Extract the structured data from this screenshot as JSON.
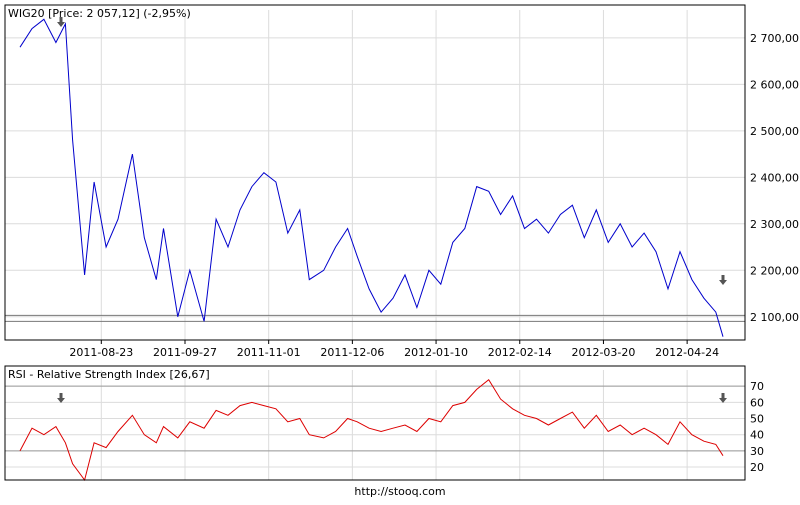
{
  "footer": {
    "url": "http://stooq.com"
  },
  "chart_data": [
    {
      "type": "line",
      "title": "WIG20 [Price: 2 057,12] (-2,95%)",
      "series": [
        {
          "color": "#0000cc",
          "x": [
            "2011-07-20",
            "2011-07-25",
            "2011-07-30",
            "2011-08-04",
            "2011-08-08",
            "2011-08-11",
            "2011-08-16",
            "2011-08-20",
            "2011-08-25",
            "2011-08-30",
            "2011-09-05",
            "2011-09-10",
            "2011-09-15",
            "2011-09-18",
            "2011-09-24",
            "2011-09-29",
            "2011-10-05",
            "2011-10-10",
            "2011-10-15",
            "2011-10-20",
            "2011-10-25",
            "2011-10-30",
            "2011-11-04",
            "2011-11-09",
            "2011-11-14",
            "2011-11-18",
            "2011-11-24",
            "2011-11-29",
            "2011-12-04",
            "2011-12-08",
            "2011-12-13",
            "2011-12-18",
            "2011-12-23",
            "2011-12-28",
            "2012-01-02",
            "2012-01-07",
            "2012-01-12",
            "2012-01-17",
            "2012-01-22",
            "2012-01-27",
            "2012-02-01",
            "2012-02-06",
            "2012-02-11",
            "2012-02-16",
            "2012-02-21",
            "2012-02-26",
            "2012-03-02",
            "2012-03-07",
            "2012-03-12",
            "2012-03-17",
            "2012-03-22",
            "2012-03-27",
            "2012-04-01",
            "2012-04-06",
            "2012-04-11",
            "2012-04-16",
            "2012-04-21",
            "2012-04-26",
            "2012-05-01",
            "2012-05-06",
            "2012-05-09"
          ],
          "values": [
            2680,
            2720,
            2740,
            2690,
            2730,
            2480,
            2190,
            2390,
            2250,
            2310,
            2450,
            2270,
            2180,
            2290,
            2100,
            2200,
            2090,
            2310,
            2250,
            2330,
            2380,
            2410,
            2390,
            2280,
            2330,
            2180,
            2200,
            2250,
            2290,
            2230,
            2160,
            2110,
            2140,
            2190,
            2120,
            2200,
            2170,
            2260,
            2290,
            2380,
            2370,
            2320,
            2360,
            2290,
            2310,
            2280,
            2320,
            2340,
            2270,
            2330,
            2260,
            2300,
            2250,
            2280,
            2240,
            2160,
            2240,
            2180,
            2140,
            2110,
            2057
          ]
        }
      ],
      "ylim": [
        2050,
        2760
      ],
      "yticks": [
        "2 100,00",
        "2 200,00",
        "2 300,00",
        "2 400,00",
        "2 500,00",
        "2 600,00",
        "2 700,00"
      ],
      "ytick_values": [
        2100,
        2200,
        2300,
        2400,
        2500,
        2600,
        2700
      ],
      "xticks": [
        "2011-08-23",
        "2011-09-27",
        "2011-11-01",
        "2011-12-06",
        "2012-01-10",
        "2012-02-14",
        "2012-03-20",
        "2012-04-24"
      ],
      "grid": true,
      "hlines": [
        2090,
        2103
      ]
    },
    {
      "type": "line",
      "title": "RSI - Relative Strength Index [26,67]",
      "series": [
        {
          "color": "#dd0000",
          "x": [
            "2011-07-20",
            "2011-07-25",
            "2011-07-30",
            "2011-08-04",
            "2011-08-08",
            "2011-08-11",
            "2011-08-16",
            "2011-08-20",
            "2011-08-25",
            "2011-08-30",
            "2011-09-05",
            "2011-09-10",
            "2011-09-15",
            "2011-09-18",
            "2011-09-24",
            "2011-09-29",
            "2011-10-05",
            "2011-10-10",
            "2011-10-15",
            "2011-10-20",
            "2011-10-25",
            "2011-10-30",
            "2011-11-04",
            "2011-11-09",
            "2011-11-14",
            "2011-11-18",
            "2011-11-24",
            "2011-11-29",
            "2011-12-04",
            "2011-12-08",
            "2011-12-13",
            "2011-12-18",
            "2011-12-23",
            "2011-12-28",
            "2012-01-02",
            "2012-01-07",
            "2012-01-12",
            "2012-01-17",
            "2012-01-22",
            "2012-01-27",
            "2012-02-01",
            "2012-02-06",
            "2012-02-11",
            "2012-02-16",
            "2012-02-21",
            "2012-02-26",
            "2012-03-02",
            "2012-03-07",
            "2012-03-12",
            "2012-03-17",
            "2012-03-22",
            "2012-03-27",
            "2012-04-01",
            "2012-04-06",
            "2012-04-11",
            "2012-04-16",
            "2012-04-21",
            "2012-04-26",
            "2012-05-01",
            "2012-05-06",
            "2012-05-09"
          ],
          "values": [
            30,
            44,
            40,
            45,
            35,
            22,
            12,
            35,
            32,
            42,
            52,
            40,
            35,
            45,
            38,
            48,
            44,
            55,
            52,
            58,
            60,
            58,
            56,
            48,
            50,
            40,
            38,
            42,
            50,
            48,
            44,
            42,
            44,
            46,
            42,
            50,
            48,
            58,
            60,
            68,
            74,
            62,
            56,
            52,
            50,
            46,
            50,
            54,
            44,
            52,
            42,
            46,
            40,
            44,
            40,
            34,
            48,
            40,
            36,
            34,
            27
          ]
        }
      ],
      "ylim": [
        12,
        80
      ],
      "yticks": [
        "20",
        "30",
        "40",
        "50",
        "60",
        "70"
      ],
      "ytick_values": [
        20,
        30,
        40,
        50,
        60,
        70
      ],
      "grid": true,
      "hlines": [
        30,
        70
      ]
    }
  ]
}
